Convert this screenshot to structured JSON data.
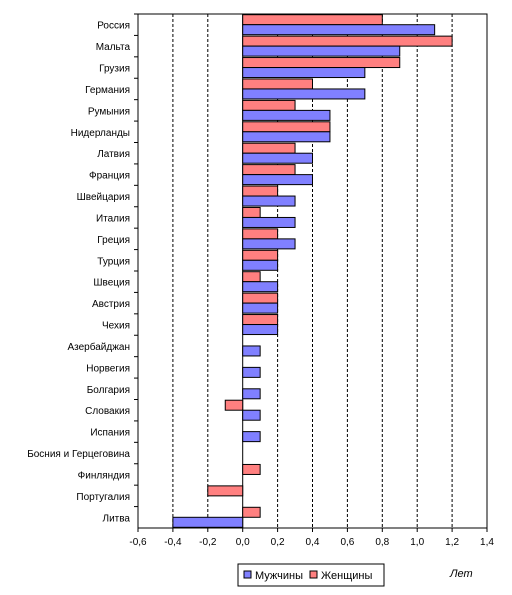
{
  "chart_data": {
    "type": "bar",
    "orientation": "horizontal",
    "categories": [
      "Россия",
      "Мальта",
      "Грузия",
      "Германия",
      "Румыния",
      "Нидерланды",
      "Латвия",
      "Франция",
      "Швейцария",
      "Италия",
      "Греция",
      "Турция",
      "Швеция",
      "Австрия",
      "Чехия",
      "Азербайджан",
      "Норвегия",
      "Болгария",
      "Словакия",
      "Испания",
      "Босния и Герцеговина",
      "Финляндия",
      "Португалия",
      "Литва"
    ],
    "series": [
      {
        "name": "Мужчины",
        "color": "#8080ff",
        "values": [
          1.1,
          0.9,
          0.7,
          0.7,
          0.5,
          0.5,
          0.4,
          0.4,
          0.3,
          0.3,
          0.3,
          0.2,
          0.2,
          0.2,
          0.2,
          0.1,
          0.1,
          0.1,
          0.1,
          0.1,
          0.0,
          0.0,
          0.0,
          -0.4
        ]
      },
      {
        "name": "Женщины",
        "color": "#ff8080",
        "values": [
          0.8,
          1.2,
          0.9,
          0.4,
          0.3,
          0.5,
          0.3,
          0.3,
          0.2,
          0.1,
          0.2,
          0.2,
          0.1,
          0.2,
          0.2,
          0.0,
          0.0,
          0.0,
          -0.1,
          0.0,
          0.0,
          0.1,
          -0.2,
          0.1
        ]
      }
    ],
    "xlim": [
      -0.6,
      1.4
    ],
    "xticks": [
      "-0,6",
      "-0,4",
      "-0,2",
      "0,0",
      "0,2",
      "0,4",
      "0,6",
      "0,8",
      "1,0",
      "1,2",
      "1,4"
    ],
    "xlabel": "Лет",
    "grid": "vertical dashed",
    "legend_position": "bottom-center"
  }
}
